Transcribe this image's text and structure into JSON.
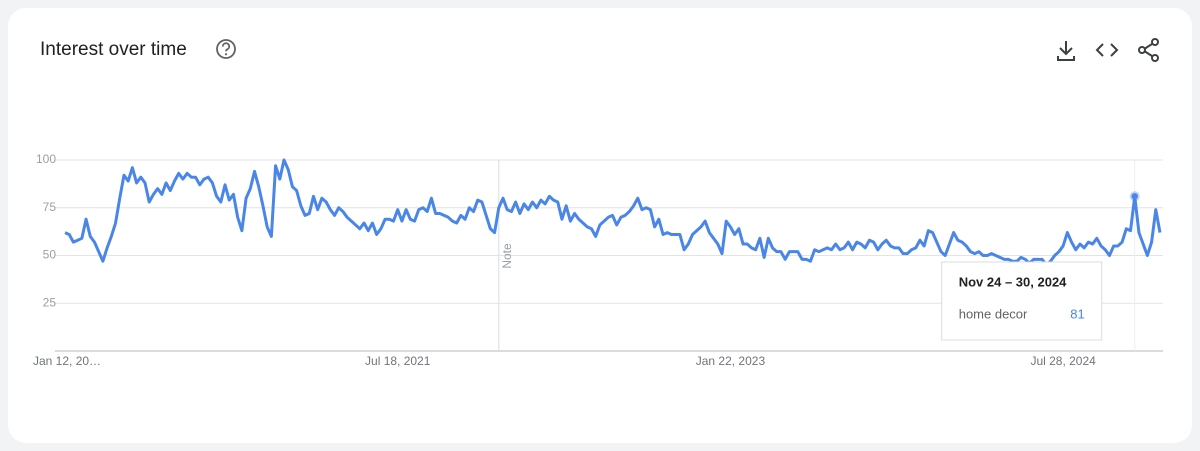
{
  "chart_data": {
    "type": "line",
    "title": "Interest over time",
    "categories": [
      "Jan 12, 20…",
      null,
      null,
      null,
      null,
      null,
      null,
      null,
      null,
      null,
      null,
      null,
      null,
      null,
      null,
      null,
      null,
      null,
      null,
      null,
      null,
      null,
      null,
      null,
      null,
      null,
      null,
      null,
      null,
      null,
      null,
      null,
      null,
      null,
      null,
      null,
      null,
      null,
      null,
      null,
      null,
      null,
      null,
      null,
      null,
      null,
      null,
      null,
      null,
      null,
      null,
      null,
      null,
      null,
      null,
      null,
      null,
      null,
      null,
      null,
      null,
      null,
      null,
      null,
      null,
      null,
      null,
      null,
      null,
      null,
      null,
      null,
      null,
      null,
      null,
      null,
      null,
      null,
      null,
      "Jul 18, 2021",
      null,
      null,
      null,
      null,
      null,
      null,
      null,
      null,
      null,
      null,
      null,
      null,
      null,
      null,
      null,
      null,
      null,
      null,
      null,
      null,
      null,
      null,
      null,
      null,
      null,
      null,
      null,
      null,
      null,
      null,
      null,
      null,
      null,
      null,
      null,
      null,
      null,
      null,
      null,
      null,
      null,
      null,
      null,
      null,
      null,
      null,
      null,
      null,
      null,
      null,
      null,
      null,
      null,
      null,
      null,
      null,
      null,
      null,
      null,
      null,
      null,
      null,
      null,
      null,
      null,
      null,
      null,
      null,
      null,
      null,
      null,
      null,
      null,
      null,
      null,
      null,
      null,
      null,
      "Jan 22, 2023",
      null,
      null,
      null,
      null,
      null,
      null,
      null,
      null,
      null,
      null,
      null,
      null,
      null,
      null,
      null,
      null,
      null,
      null,
      null,
      null,
      null,
      null,
      null,
      null,
      null,
      null,
      null,
      null,
      null,
      null,
      null,
      null,
      null,
      null,
      null,
      null,
      null,
      null,
      null,
      null,
      null,
      null,
      null,
      null,
      null,
      null,
      null,
      null,
      null,
      null,
      null,
      null,
      null,
      null,
      null,
      null,
      null,
      null,
      null,
      null,
      null,
      null,
      null,
      null,
      null,
      null,
      null,
      null,
      null,
      null,
      null,
      null,
      null,
      null,
      null,
      null,
      null,
      null,
      "Jul 28, 2024",
      null,
      null,
      null,
      null,
      null,
      null,
      null,
      null,
      null,
      null,
      null,
      null,
      null,
      null,
      null,
      null,
      null,
      null,
      null,
      null,
      null,
      null,
      null
    ],
    "series": [
      {
        "name": "home decor",
        "color": "#4a86e8",
        "values": [
          62,
          61,
          57,
          58,
          59,
          69,
          60,
          57,
          52,
          47,
          54,
          60,
          67,
          80,
          92,
          89,
          96,
          88,
          91,
          88,
          78,
          82,
          85,
          82,
          88,
          84,
          89,
          93,
          90,
          93,
          91,
          91,
          87,
          90,
          91,
          88,
          81,
          78,
          87,
          79,
          82,
          70,
          63,
          80,
          85,
          94,
          86,
          76,
          65,
          60,
          97,
          90,
          100,
          95,
          86,
          84,
          76,
          71,
          72,
          81,
          74,
          80,
          78,
          74,
          71,
          75,
          73,
          70,
          68,
          66,
          64,
          67,
          63,
          67,
          61,
          64,
          69,
          69,
          68,
          74,
          68,
          74,
          69,
          68,
          74,
          75,
          73,
          80,
          72,
          72,
          71,
          70,
          68,
          67,
          71,
          69,
          75,
          73,
          79,
          78,
          71,
          64,
          62,
          75,
          80,
          74,
          73,
          78,
          72,
          77,
          74,
          78,
          75,
          79,
          77,
          81,
          79,
          78,
          69,
          76,
          68,
          72,
          69,
          67,
          65,
          64,
          60,
          66,
          68,
          70,
          71,
          66,
          70,
          71,
          73,
          76,
          80,
          74,
          75,
          74,
          65,
          69,
          61,
          62,
          61,
          61,
          61,
          53,
          56,
          61,
          63,
          65,
          68,
          62,
          59,
          56,
          51,
          68,
          65,
          61,
          64,
          56,
          56,
          54,
          53,
          59,
          49,
          59,
          54,
          52,
          52,
          48,
          52,
          52,
          52,
          48,
          48,
          47,
          53,
          52,
          53,
          54,
          53,
          56,
          53,
          54,
          57,
          53,
          57,
          56,
          54,
          58,
          57,
          53,
          56,
          58,
          55,
          54,
          54,
          51,
          51,
          53,
          54,
          58,
          55,
          63,
          62,
          57,
          52,
          50,
          56,
          62,
          58,
          57,
          55,
          52,
          51,
          52,
          50,
          50,
          51,
          50,
          49,
          48,
          48,
          47,
          47,
          49,
          48,
          46,
          48,
          48,
          48,
          45,
          47,
          50,
          52,
          55,
          62,
          57,
          53,
          56,
          54,
          57,
          56,
          59,
          55,
          53,
          50,
          55,
          55,
          57,
          64,
          63,
          81,
          62,
          56,
          50,
          57,
          74,
          62
        ]
      }
    ],
    "ylim": [
      0,
      100
    ],
    "yticks": [
      25,
      50,
      75,
      100
    ],
    "grid": true,
    "note": {
      "index": 103,
      "label": "Note"
    },
    "tooltip": {
      "index": 254,
      "title": "Nov 24 – 30, 2024"
    }
  }
}
